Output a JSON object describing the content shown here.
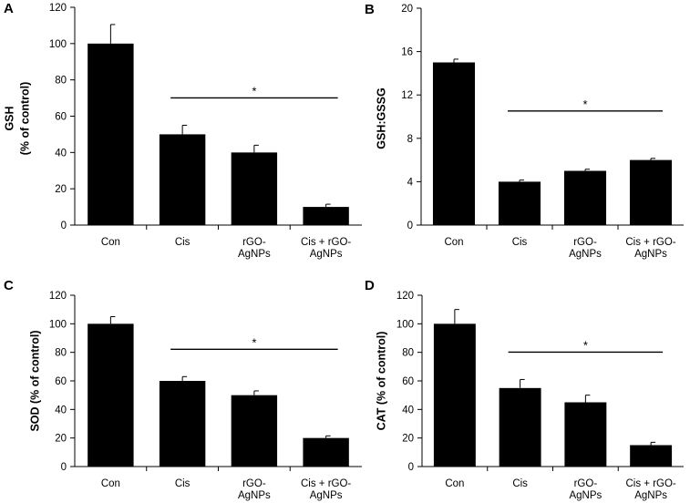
{
  "chart_data": [
    {
      "type": "bar",
      "panel_label": "A",
      "categories": [
        [
          "Con"
        ],
        [
          "Cis"
        ],
        [
          "rGO-",
          "AgNPs"
        ],
        [
          "Cis + rGO-",
          "AgNPs"
        ]
      ],
      "values": [
        100,
        50,
        40,
        10
      ],
      "errors": [
        10.5,
        5,
        4,
        1.5
      ],
      "ylabel": [
        "GSH",
        "(% of control)"
      ],
      "ylim": [
        0,
        120
      ],
      "yticks": [
        0,
        20,
        40,
        60,
        80,
        100,
        120
      ],
      "significance": {
        "from": 1,
        "to": 3,
        "label": "*"
      }
    },
    {
      "type": "bar",
      "panel_label": "B",
      "categories": [
        [
          "Con"
        ],
        [
          "Cis"
        ],
        [
          "rGO-",
          "AgNPs"
        ],
        [
          "Cis + rGO-",
          "AgNPs"
        ]
      ],
      "values": [
        15,
        4,
        5,
        6
      ],
      "errors": [
        0.3,
        0.15,
        0.15,
        0.15
      ],
      "ylabel": [
        "GSH:GSSG"
      ],
      "ylim": [
        0,
        20
      ],
      "yticks": [
        0,
        4,
        8,
        12,
        16,
        20
      ],
      "significance": {
        "from": 1,
        "to": 3,
        "label": "*"
      }
    },
    {
      "type": "bar",
      "panel_label": "C",
      "categories": [
        [
          "Con"
        ],
        [
          "Cis"
        ],
        [
          "rGO-",
          "AgNPs"
        ],
        [
          "Cis + rGO-",
          "AgNPs"
        ]
      ],
      "values": [
        100,
        60,
        50,
        20
      ],
      "errors": [
        5,
        3,
        3,
        1.5
      ],
      "ylabel": [
        "SOD (% of control)"
      ],
      "ylim": [
        0,
        120
      ],
      "yticks": [
        0,
        20,
        40,
        60,
        80,
        100,
        120
      ],
      "significance": {
        "from": 1,
        "to": 3,
        "label": "*"
      }
    },
    {
      "type": "bar",
      "panel_label": "D",
      "categories": [
        [
          "Con"
        ],
        [
          "Cis"
        ],
        [
          "rGO-",
          "AgNPs"
        ],
        [
          "Cis + rGO-",
          "AgNPs"
        ]
      ],
      "values": [
        100,
        55,
        45,
        15
      ],
      "errors": [
        10,
        6,
        5,
        2
      ],
      "ylabel": [
        "CAT (% of control)"
      ],
      "ylim": [
        0,
        120
      ],
      "yticks": [
        0,
        20,
        40,
        60,
        80,
        100,
        120
      ],
      "significance": {
        "from": 1,
        "to": 3,
        "label": "*"
      }
    }
  ],
  "colors": {
    "bar": "#000000",
    "axis": "#000000",
    "background": "#ffffff"
  }
}
